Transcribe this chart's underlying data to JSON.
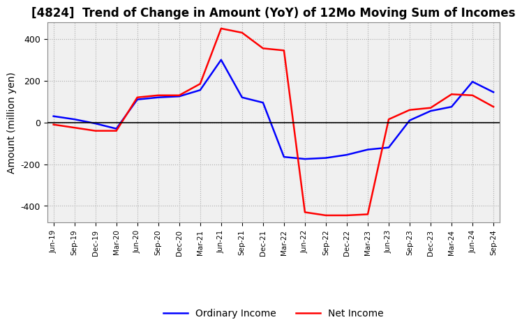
{
  "title": "[4824]  Trend of Change in Amount (YoY) of 12Mo Moving Sum of Incomes",
  "ylabel": "Amount (million yen)",
  "ylim": [
    -480,
    480
  ],
  "yticks": [
    -400,
    -200,
    0,
    200,
    400
  ],
  "x_labels": [
    "Jun-19",
    "Sep-19",
    "Dec-19",
    "Mar-20",
    "Jun-20",
    "Sep-20",
    "Dec-20",
    "Mar-21",
    "Jun-21",
    "Sep-21",
    "Dec-21",
    "Mar-22",
    "Jun-22",
    "Sep-22",
    "Dec-22",
    "Mar-23",
    "Jun-23",
    "Sep-23",
    "Dec-23",
    "Mar-24",
    "Jun-24",
    "Sep-24"
  ],
  "ordinary_income": [
    30,
    15,
    -5,
    -30,
    110,
    120,
    125,
    155,
    300,
    120,
    95,
    -165,
    -175,
    -170,
    -155,
    -130,
    -120,
    10,
    55,
    75,
    195,
    145
  ],
  "net_income": [
    -10,
    -25,
    -40,
    -40,
    120,
    130,
    130,
    185,
    450,
    430,
    355,
    345,
    -430,
    -445,
    -445,
    -440,
    15,
    60,
    70,
    135,
    130,
    75
  ],
  "ordinary_color": "#0000ff",
  "net_color": "#ff0000",
  "background_color": "#ffffff",
  "plot_bg_color": "#f0f0f0",
  "grid_color": "#aaaaaa",
  "title_fontsize": 12,
  "legend_fontsize": 10,
  "axis_fontsize": 10,
  "tick_fontsize": 9
}
